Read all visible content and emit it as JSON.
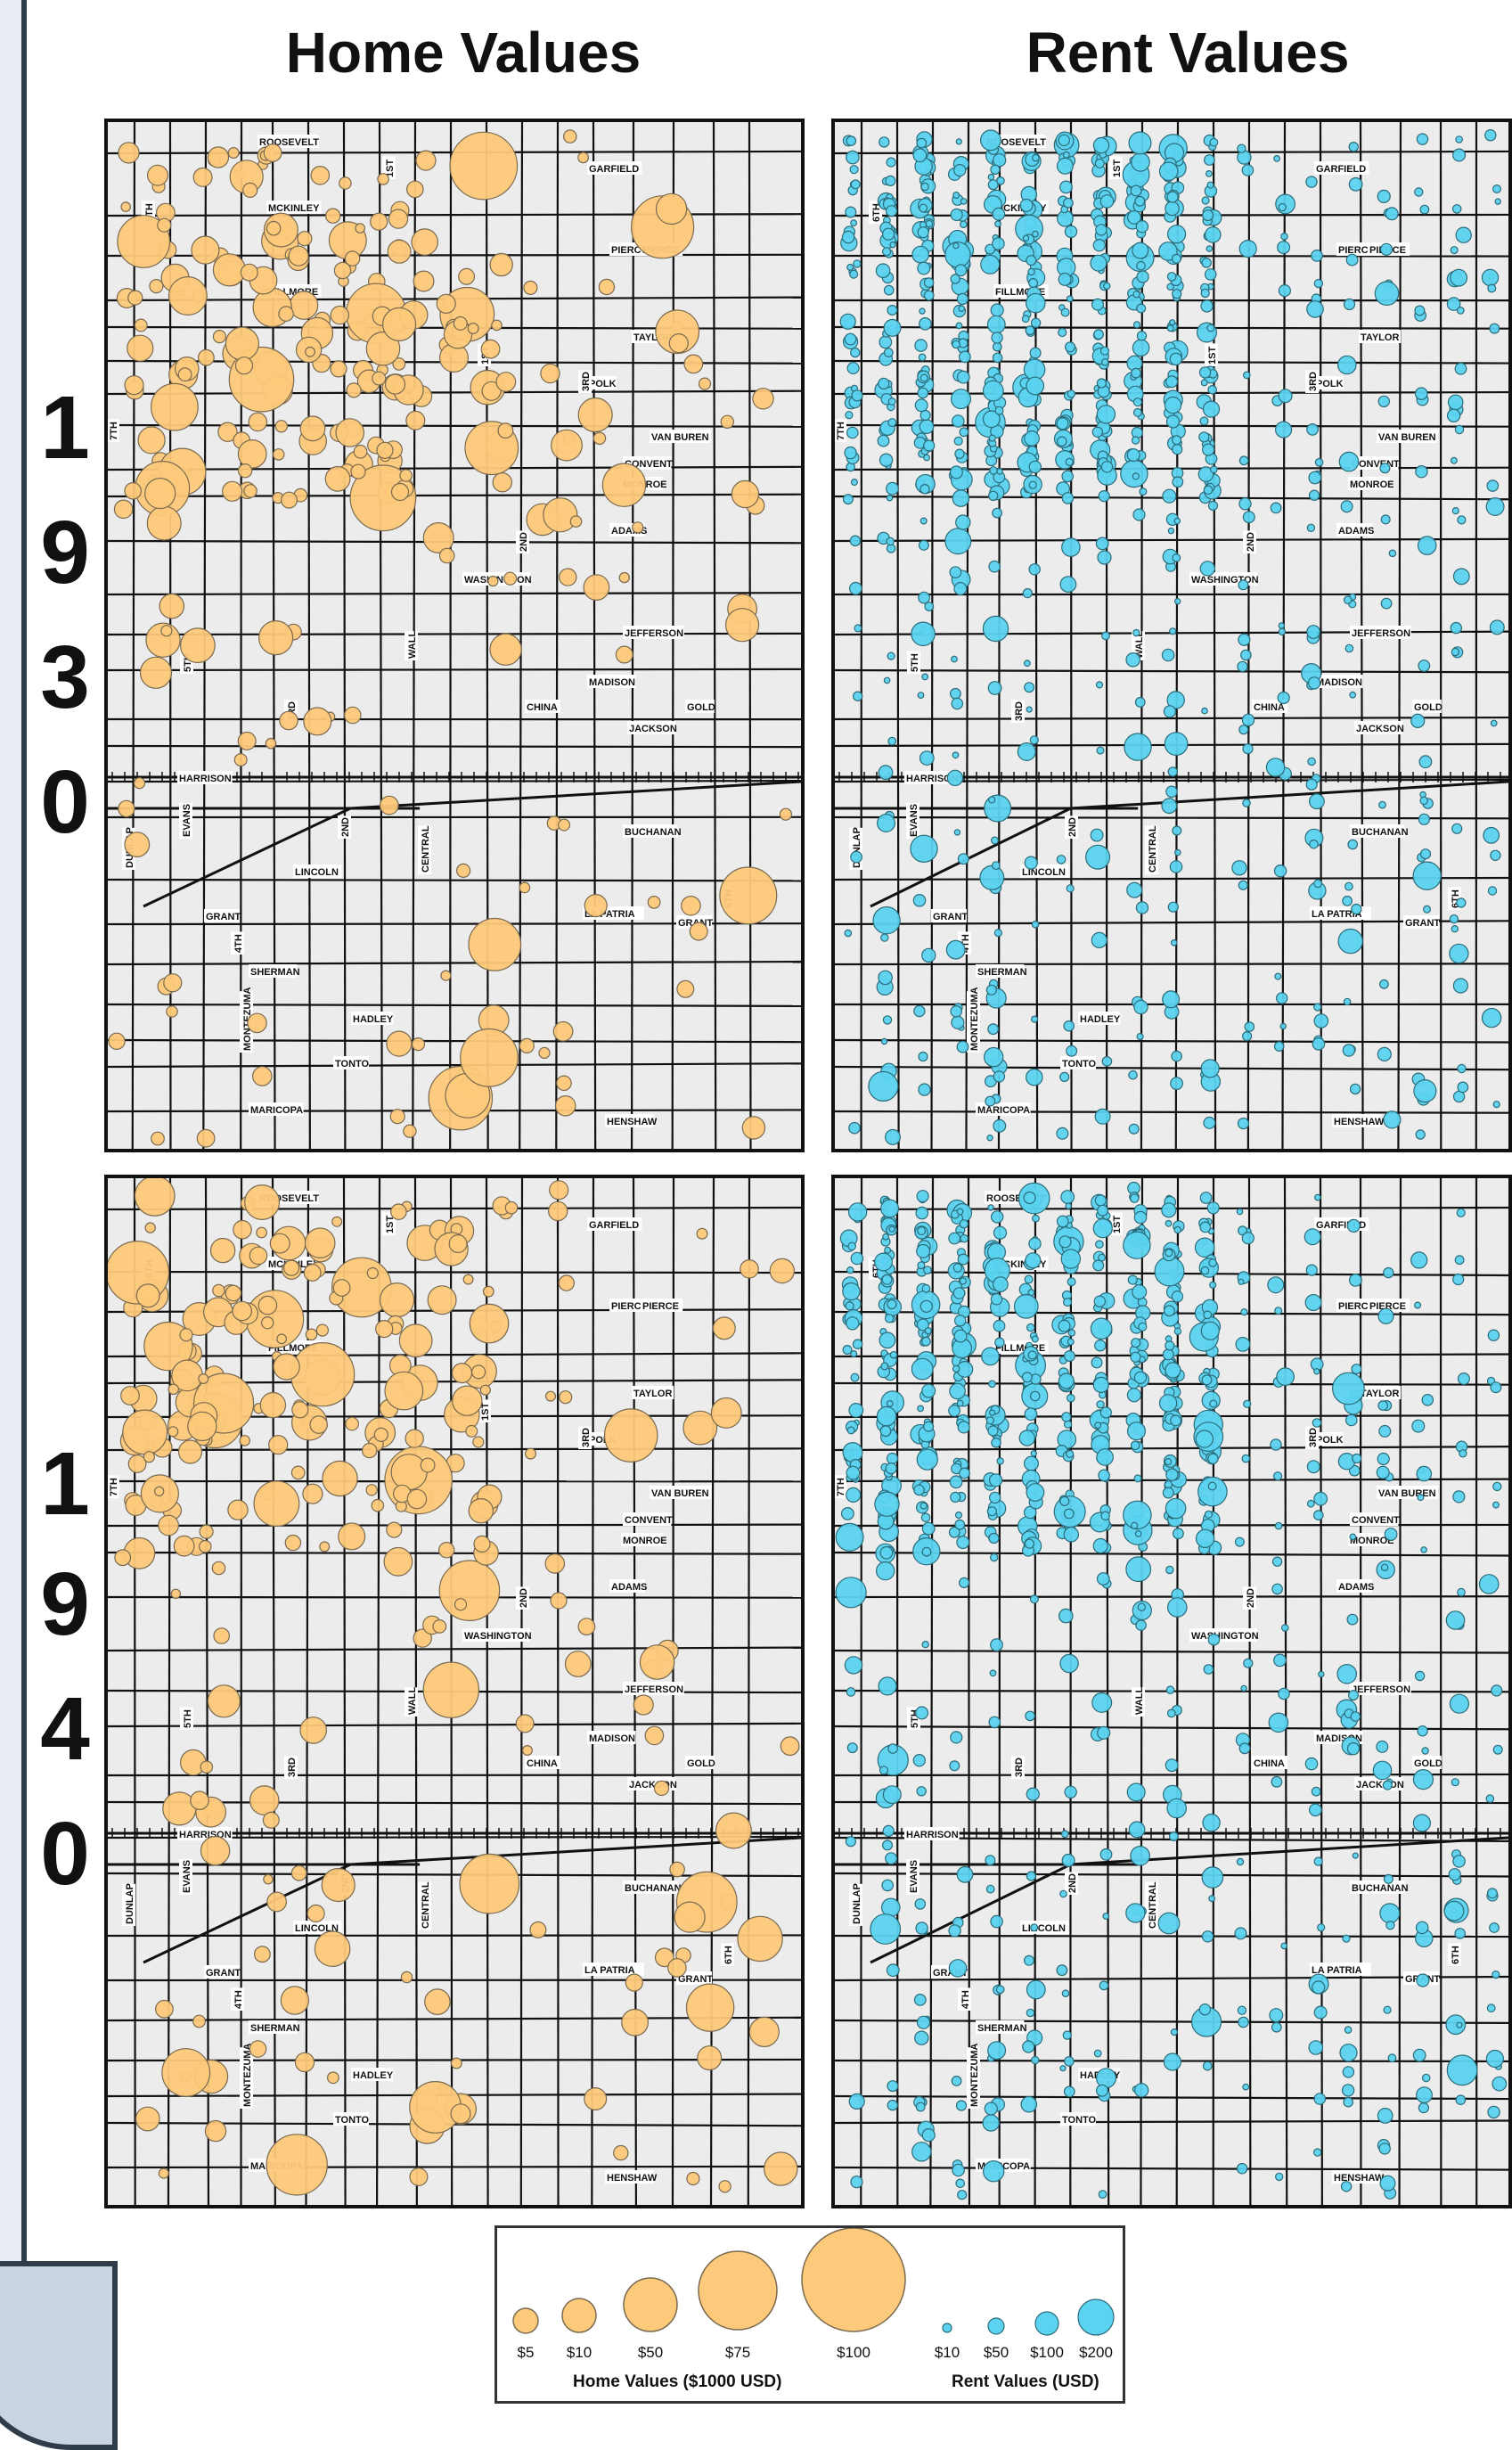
{
  "headers": {
    "home": "Home Values",
    "rent": "Rent Values"
  },
  "years": {
    "y1930": [
      "1",
      "9",
      "3",
      "0"
    ],
    "y1940": [
      "1",
      "9",
      "4",
      "0"
    ]
  },
  "street_labels": [
    "ROOSEVELT",
    "GARFIELD",
    "MCKINLEY",
    "PIERCE",
    "FILLMORE",
    "TAYLOR",
    "POLK",
    "VAN BUREN",
    "CONVENT",
    "MONROE",
    "ADAMS",
    "WASHINGTON",
    "JEFFERSON",
    "MADISON",
    "CHINA",
    "GOLD",
    "JACKSON",
    "HARRISON",
    "BUCHANAN",
    "LINCOLN",
    "GRANT",
    "LA PATRIA",
    "SHERMAN",
    "HADLEY",
    "TONTO",
    "MARICOPA",
    "HENSHAW",
    "MONTEZUMA",
    "DUNLAP",
    "EVANS",
    "CENTRAL",
    "WALL",
    "1ST",
    "2ND",
    "3RD",
    "4TH",
    "5TH",
    "6TH",
    "7TH"
  ],
  "legend": {
    "home_title": "Home Values ($1000 USD)",
    "rent_title": "Rent Values (USD)",
    "home_items": [
      "$5",
      "$10",
      "$50",
      "$75",
      "$100"
    ],
    "rent_items": [
      "$10",
      "$50",
      "$100",
      "$200"
    ]
  },
  "colors": {
    "home_fill": "#fdc97a",
    "rent_fill": "#5bd3f0",
    "street": "#111111",
    "block": "#ececec"
  }
}
